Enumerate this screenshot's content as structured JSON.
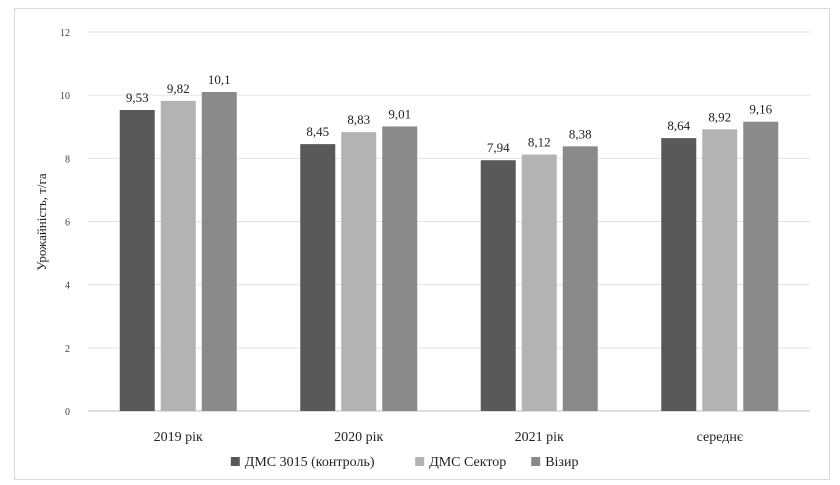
{
  "chart_data": {
    "type": "bar",
    "categories": [
      "2019 рік",
      "2020 рік",
      "2021 рік",
      "середнє"
    ],
    "series": [
      {
        "name": "ДМС 3015 (контроль)",
        "color": "#595959",
        "values": [
          9.53,
          8.45,
          7.94,
          8.64
        ]
      },
      {
        "name": "ДМС Сектор",
        "color": "#b3b3b3",
        "values": [
          9.82,
          8.83,
          8.12,
          8.92
        ]
      },
      {
        "name": "Візир",
        "color": "#8a8a8a",
        "values": [
          10.1,
          9.01,
          8.38,
          9.16
        ]
      }
    ],
    "data_labels": [
      [
        "9,53",
        "8,45",
        "7,94",
        "8,64"
      ],
      [
        "9,82",
        "8,83",
        "8,12",
        "8,92"
      ],
      [
        "10,1",
        "9,01",
        "8,38",
        "9,16"
      ]
    ],
    "yticks": [
      "0",
      "2",
      "4",
      "6",
      "8",
      "10",
      "12"
    ],
    "ylabel": "Урожайність, т/га",
    "ylim": [
      0,
      12
    ],
    "grid": true,
    "legend_position": "bottom"
  }
}
